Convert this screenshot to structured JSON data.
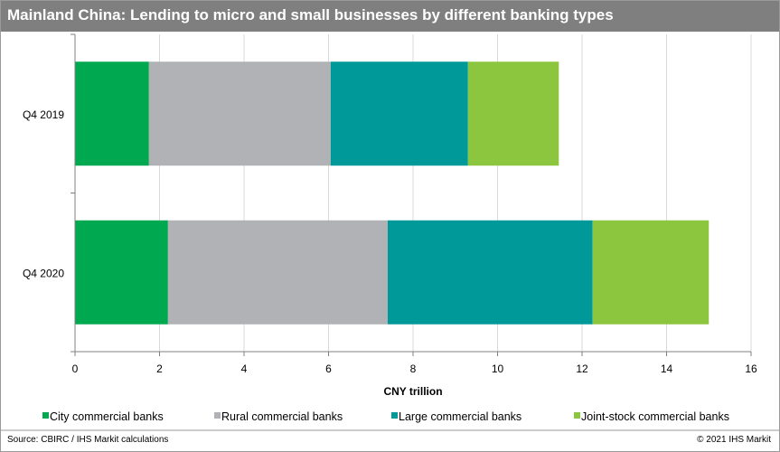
{
  "title": "Mainland China: Lending to micro and small businesses by different banking types",
  "source": "Source: CBIRC / IHS Markit calculations",
  "copyright": "© 2021  IHS Markit",
  "chart_data": {
    "type": "bar",
    "orientation": "horizontal",
    "stacked": true,
    "categories": [
      "Q4 2019",
      "Q4 2020"
    ],
    "series": [
      {
        "name": "City commercial banks",
        "color": "#00a84f",
        "values": [
          1.75,
          2.2
        ]
      },
      {
        "name": "Rural commercial banks",
        "color": "#b1b2b5",
        "values": [
          4.3,
          5.2
        ]
      },
      {
        "name": "Large commercial banks",
        "color": "#009999",
        "values": [
          3.25,
          4.85
        ]
      },
      {
        "name": "Joint-stock commercial banks",
        "color": "#8cc63f",
        "values": [
          2.15,
          2.75
        ]
      }
    ],
    "xlabel": "CNY trillion",
    "ylabel": "",
    "xlim": [
      0,
      16
    ],
    "xticks": [
      0,
      2,
      4,
      6,
      8,
      10,
      12,
      14,
      16
    ],
    "grid": "vertical",
    "legend": "bottom"
  }
}
